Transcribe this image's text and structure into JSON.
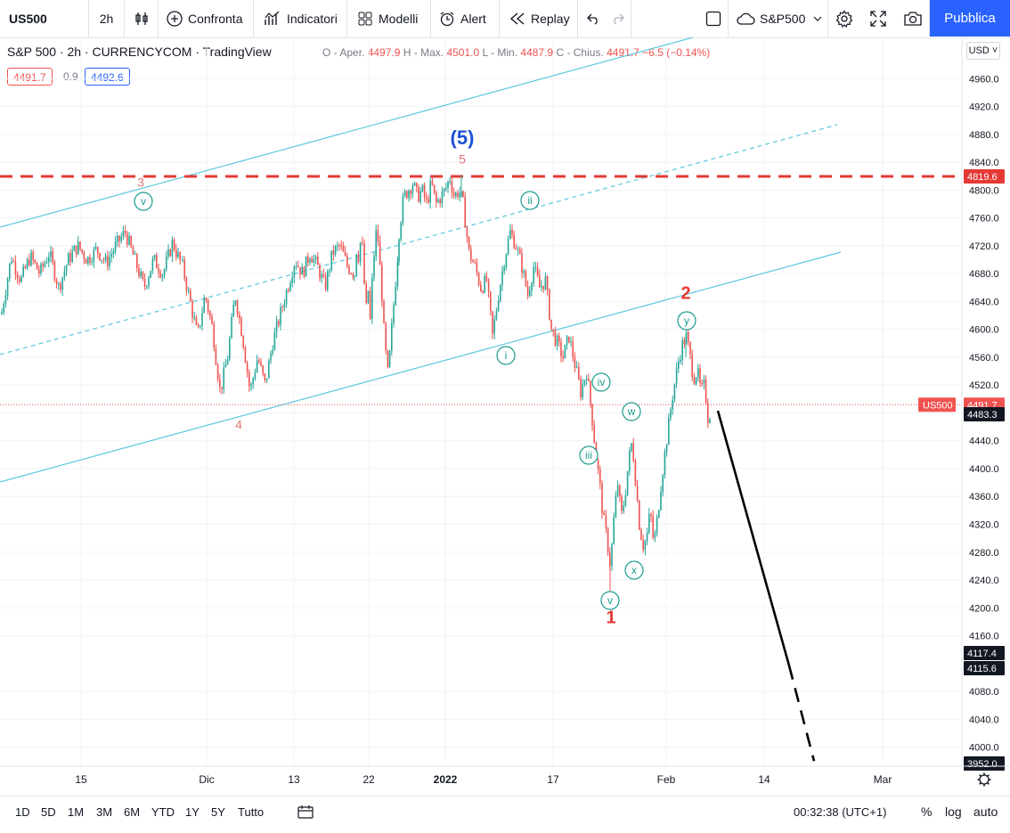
{
  "toolbar": {
    "symbol": "US500",
    "interval": "2h",
    "compare": "Confronta",
    "indicators": "Indicatori",
    "templates": "Modelli",
    "alert": "Alert",
    "replay": "Replay",
    "layout_name": "S&P500",
    "publish": "Pubblica"
  },
  "legend": {
    "title": "S&P 500 · 2h · CURRENCYCOM · TradingView",
    "open_label": "O - Aper.",
    "open": "4497.9",
    "high_label": "H - Max.",
    "high": "4501.0",
    "low_label": "L - Min.",
    "low": "4487.9",
    "close_label": "C - Chius.",
    "close": "4491.7",
    "change": "−6.5 (−0.14%)",
    "bid": "4491.7",
    "spread": "0.9",
    "ask": "4492.6"
  },
  "currency": "USD",
  "colors": {
    "up": "#26a69a",
    "down": "#ef5350",
    "channel": "#5bc8dc",
    "resistance": "#e53935",
    "wave_teal": "#1a9c8c",
    "wave_blue": "#1f4fd6",
    "accent": "#2962ff"
  },
  "chart_data": {
    "type": "candlestick",
    "instrument": "S&P 500",
    "interval": "2h",
    "y_range": [
      3952,
      4990
    ],
    "y_ticks": [
      4960,
      4920,
      4880,
      4840,
      4800,
      4760,
      4720,
      4680,
      4640,
      4600,
      4560,
      4520,
      4480,
      4440,
      4400,
      4360,
      4320,
      4280,
      4240,
      4200,
      4160,
      4080,
      4040,
      4000
    ],
    "x_labels": [
      "15",
      "Dic",
      "13",
      "22",
      "2022",
      "17",
      "Feb",
      "14",
      "Mar"
    ],
    "price_path": [
      [
        4625,
        4705,
        4670,
        4705,
        4680,
        4710,
        4660,
        4700,
        4720,
        4700,
        4715,
        4695,
        4720,
        4740,
        4700,
        4660,
        4700,
        4680,
        4725,
        4690
      ],
      [
        4690,
        4640,
        4590,
        4650,
        4600,
        4510,
        4560,
        4650,
        4590,
        4510,
        4560,
        4520,
        4580,
        4620,
        4660,
        4700,
        4680,
        4710,
        4690,
        4660,
        4710,
        4720,
        4690,
        4680
      ],
      [
        4680,
        4720,
        4700,
        4740,
        4690,
        4620,
        4660,
        4610,
        4680,
        4720,
        4750,
        4700,
        4660,
        4600,
        4560,
        4530,
        4580,
        4620,
        4660,
        4700,
        4740
      ],
      [
        4740,
        4790,
        4800,
        4810,
        4790,
        4800,
        4780,
        4810,
        4780,
        4790,
        4800,
        4818,
        4790,
        4800,
        4780
      ],
      [
        4780,
        4710,
        4690,
        4660,
        4670,
        4590,
        4650,
        4700,
        4740,
        4720,
        4690,
        4650,
        4690,
        4660,
        4670,
        4600,
        4580,
        4560,
        4590,
        4550,
        4510,
        4540,
        4470
      ],
      [
        4470,
        4420,
        4380,
        4330,
        4300,
        4260,
        4330,
        4380,
        4330,
        4360,
        4410,
        4440,
        4380,
        4320,
        4290,
        4300,
        4340,
        4290,
        4330,
        4380,
        4420,
        4460,
        4500,
        4530,
        4560,
        4580,
        4590,
        4560,
        4530,
        4540,
        4510,
        4520,
        4470,
        4490
      ]
    ],
    "current_price": 4491.7,
    "price_labels": [
      {
        "value": 4819.6,
        "label": "4819.6",
        "bg": "#e53935"
      },
      {
        "value": 4491.7,
        "label": "4491.7",
        "bg": "#ef5350",
        "tag": "US500"
      },
      {
        "value": 4483.3,
        "label": "4483.3",
        "bg": "#131722"
      },
      {
        "value": 4117.4,
        "label": "4117.4",
        "bg": "#131722"
      },
      {
        "value": 4115.6,
        "label": "4115.6",
        "bg": "#131722"
      },
      {
        "value": 3952.0,
        "label": "3952.0",
        "bg": "#131722"
      }
    ],
    "resistance_level": 4819.6,
    "wave_labels_major": [
      {
        "text": "(5)",
        "price": 4852
      },
      {
        "text": "5",
        "price": 4823
      },
      {
        "text": "3",
        "price": 4798
      },
      {
        "text": "4",
        "price": 4477
      },
      {
        "text": "1",
        "price": 4178
      },
      {
        "text": "2",
        "price": 4628
      }
    ],
    "wave_labels_minor": [
      "v",
      "ii",
      "i",
      "iv",
      "w",
      "iii",
      "x",
      "v",
      "y"
    ],
    "projection": {
      "from": 4483,
      "to": 4117,
      "dashed_to": 3980
    }
  },
  "bottom": {
    "ranges": [
      "1D",
      "5D",
      "1M",
      "3M",
      "6M",
      "YTD",
      "1Y",
      "5Y",
      "Tutto"
    ],
    "clock": "00:32:38 (UTC+1)",
    "percent": "%",
    "log": "log",
    "auto": "auto"
  }
}
